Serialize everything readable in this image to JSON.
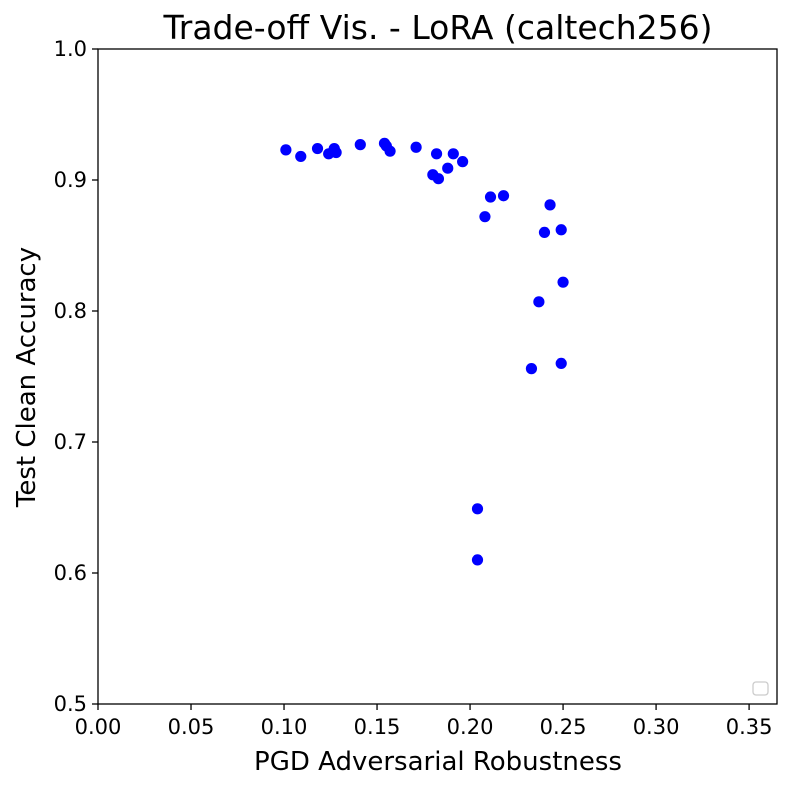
{
  "chart_data": {
    "type": "scatter",
    "title": "Trade-off Vis. - LoRA (caltech256)",
    "xlabel": "PGD Adversarial Robustness",
    "ylabel": "Test Clean Accuracy",
    "xlim": [
      0.0,
      0.365
    ],
    "ylim": [
      0.5,
      1.0
    ],
    "xticks": [
      "0.00",
      "0.05",
      "0.10",
      "0.15",
      "0.20",
      "0.25",
      "0.30",
      "0.35"
    ],
    "yticks": [
      "0.5",
      "0.6",
      "0.7",
      "0.8",
      "0.9",
      "1.0"
    ],
    "grid": false,
    "legend": "lower-right (empty)",
    "marker_color": "#0000ff",
    "points": [
      {
        "x": 0.101,
        "y": 0.923
      },
      {
        "x": 0.109,
        "y": 0.918
      },
      {
        "x": 0.118,
        "y": 0.924
      },
      {
        "x": 0.124,
        "y": 0.92
      },
      {
        "x": 0.127,
        "y": 0.924
      },
      {
        "x": 0.128,
        "y": 0.921
      },
      {
        "x": 0.141,
        "y": 0.927
      },
      {
        "x": 0.154,
        "y": 0.928
      },
      {
        "x": 0.155,
        "y": 0.926
      },
      {
        "x": 0.157,
        "y": 0.922
      },
      {
        "x": 0.171,
        "y": 0.925
      },
      {
        "x": 0.18,
        "y": 0.904
      },
      {
        "x": 0.182,
        "y": 0.92
      },
      {
        "x": 0.183,
        "y": 0.901
      },
      {
        "x": 0.188,
        "y": 0.909
      },
      {
        "x": 0.191,
        "y": 0.92
      },
      {
        "x": 0.196,
        "y": 0.914
      },
      {
        "x": 0.208,
        "y": 0.872
      },
      {
        "x": 0.211,
        "y": 0.887
      },
      {
        "x": 0.218,
        "y": 0.888
      },
      {
        "x": 0.243,
        "y": 0.881
      },
      {
        "x": 0.24,
        "y": 0.86
      },
      {
        "x": 0.249,
        "y": 0.862
      },
      {
        "x": 0.237,
        "y": 0.807
      },
      {
        "x": 0.25,
        "y": 0.822
      },
      {
        "x": 0.233,
        "y": 0.756
      },
      {
        "x": 0.249,
        "y": 0.76
      },
      {
        "x": 0.204,
        "y": 0.649
      },
      {
        "x": 0.204,
        "y": 0.61
      }
    ]
  }
}
